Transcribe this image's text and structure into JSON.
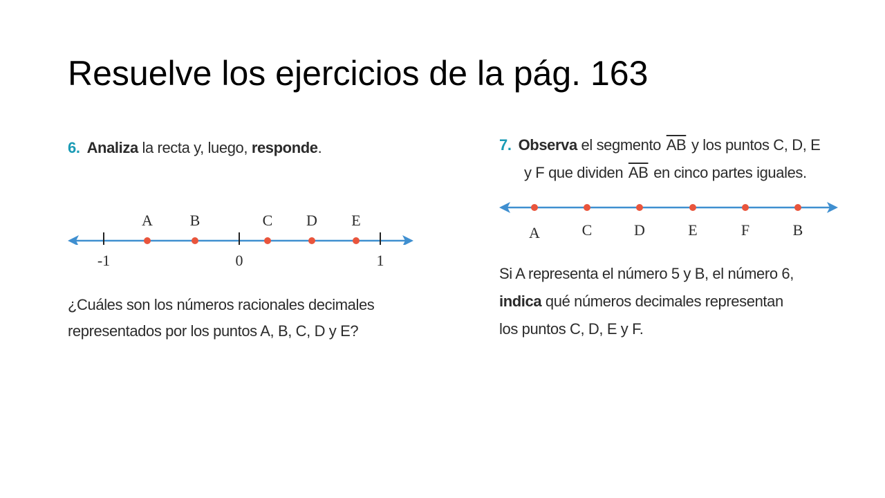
{
  "slide": {
    "title": "Resuelve los ejercicios de la pág. 163"
  },
  "exercise6": {
    "number": "6.",
    "statement_bold_1": "Analiza",
    "statement_mid": " la recta y, luego, ",
    "statement_bold_2": "responde",
    "statement_end": ".",
    "point_labels": [
      "A",
      "B",
      "C",
      "D",
      "E"
    ],
    "tick_labels": [
      "-1",
      "0",
      "1"
    ],
    "question_line1": "¿Cuáles son los números racionales decimales",
    "question_line2": "representados por los puntos A, B, C, D y E?"
  },
  "exercise7": {
    "number": "7.",
    "line1_bold": "Observa",
    "line1_mid": " el segmento ",
    "segment": "AB",
    "line1_end": " y los puntos C, D, E",
    "line2_start": "y F que dividen ",
    "line2_end": " en cinco partes iguales.",
    "point_labels": [
      "A",
      "C",
      "D",
      "E",
      "F",
      "B"
    ],
    "text_line1": "Si A representa el número 5 y B, el número 6,",
    "text_line2_bold": "indica",
    "text_line2_rest": " qué números decimales representan",
    "text_line3": "los puntos C, D, E y F."
  },
  "colors": {
    "line": "#3f8fd0",
    "point": "#e9553c",
    "exercise_number": "#1a9bb5"
  }
}
